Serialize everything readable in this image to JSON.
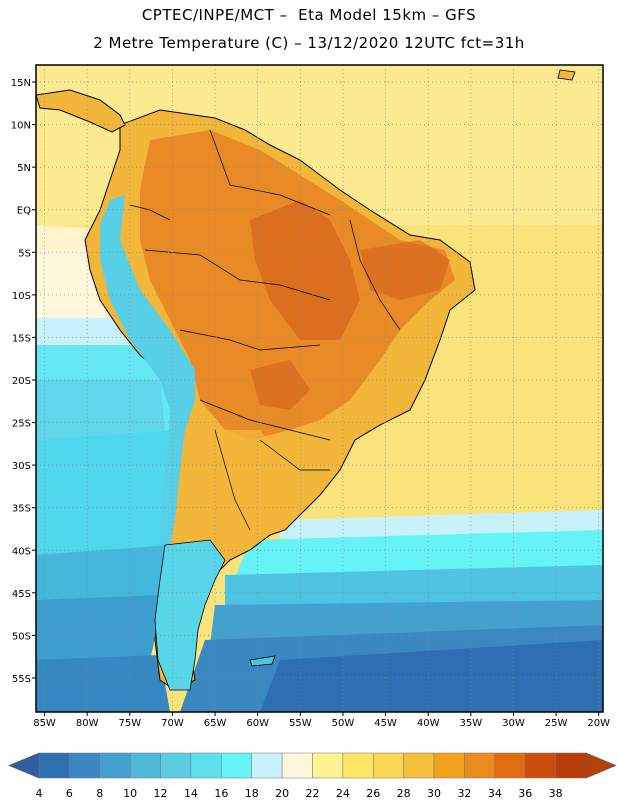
{
  "header": {
    "line1": "CPTEC/INPE/MCT –  Eta Model 15km – GFS",
    "line2": "2 Metre Temperature (C) – 13/12/2020 12UTC fct=31h"
  },
  "map_axes": {
    "lat_labels": [
      "15N",
      "10N",
      "5N",
      "EQ",
      "5S",
      "10S",
      "15S",
      "20S",
      "25S",
      "30S",
      "35S",
      "40S",
      "45S",
      "50S",
      "55S"
    ],
    "lon_labels": [
      "85W",
      "80W",
      "75W",
      "70W",
      "65W",
      "60W",
      "55W",
      "50W",
      "45W",
      "40W",
      "35W",
      "30W",
      "25W",
      "20W"
    ],
    "lon_range": [
      -86,
      -19.5
    ],
    "lat_range": [
      -59,
      17
    ]
  },
  "colorbar": {
    "ticks": [
      "4",
      "6",
      "8",
      "10",
      "12",
      "14",
      "16",
      "18",
      "20",
      "22",
      "24",
      "26",
      "28",
      "30",
      "32",
      "34",
      "36",
      "38"
    ],
    "colors": [
      "#2e6fb2",
      "#3b87c2",
      "#44a1cf",
      "#4fb9da",
      "#5acde4",
      "#5fe0ee",
      "#66f3f8",
      "#c8f2fb",
      "#fff8dc",
      "#fff394",
      "#ffe566",
      "#fdd653",
      "#f4bf3a",
      "#f0a21d",
      "#ec8c1b",
      "#e06d0f",
      "#cc4e0b",
      "#b73e08"
    ],
    "left_arrow_color": "#2e5fa5",
    "right_arrow_color": "#b5400a"
  },
  "colors": {
    "frame": "#000000",
    "grid": "#888888",
    "coast": "#000000",
    "ocean_tropical": "#fbe37c",
    "ocean_tropical_deep": "#fde98f",
    "ocean_cool": "#66e8f4",
    "ocean_cold": "#4fc3e2",
    "ocean_colder": "#3d9dcf",
    "ocean_coldest": "#2d73b3",
    "land_hot": "#e88a26",
    "land_warm": "#f2b63a",
    "land_hottest": "#cf5a17",
    "andes": "#57cfe6",
    "patagonia": "#58d5e8"
  }
}
